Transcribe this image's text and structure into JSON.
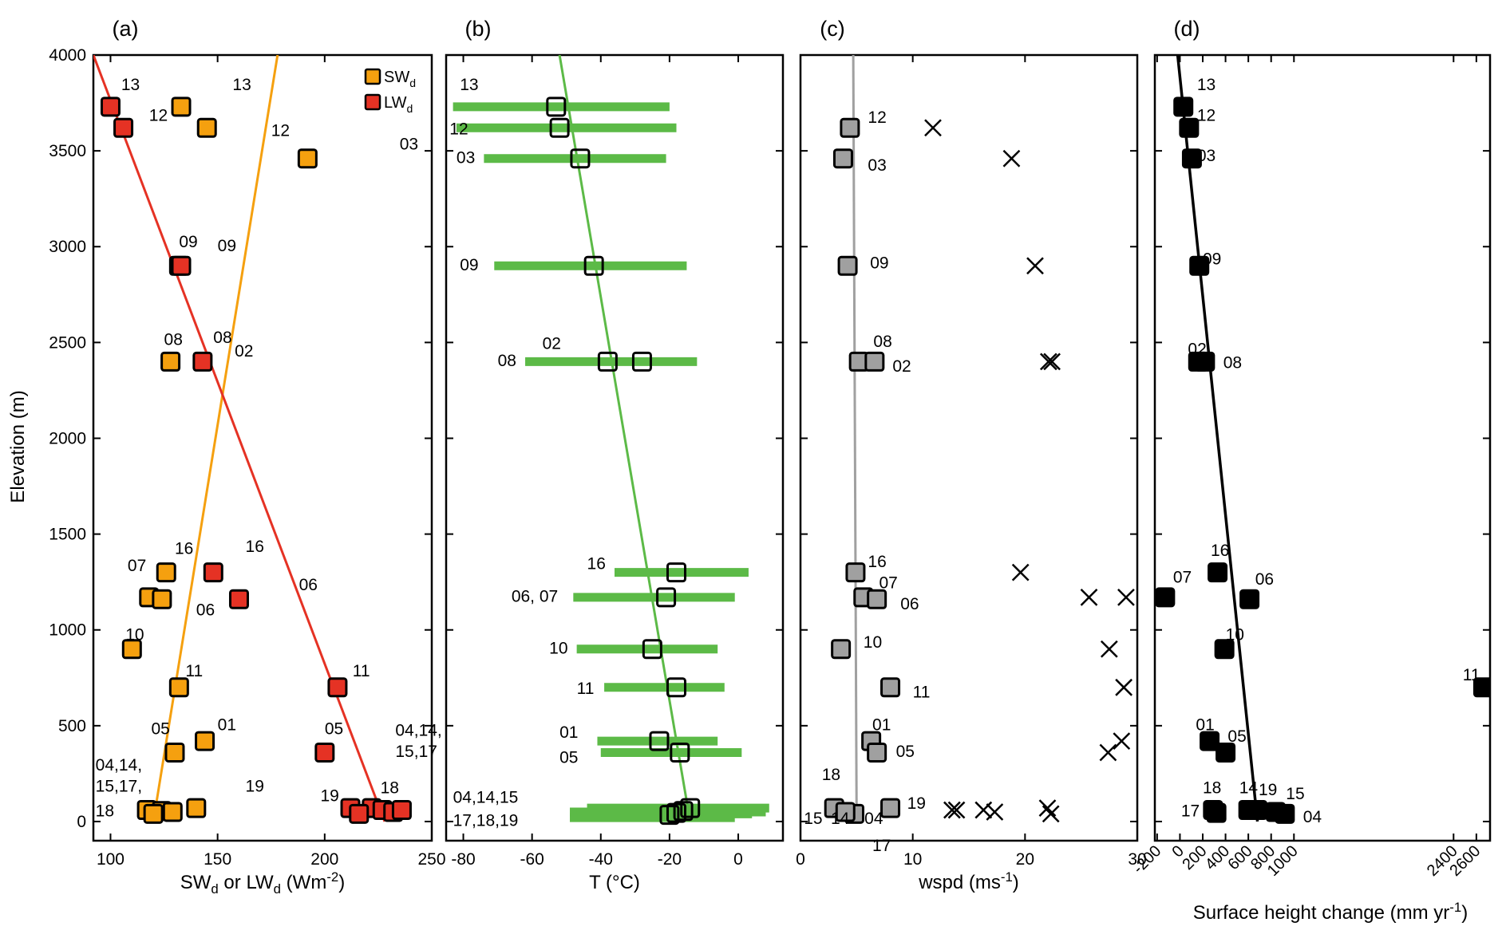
{
  "colors": {
    "sw": "#f5a00f",
    "lw": "#e53224",
    "temperature": "#5cba47",
    "wind": "#a0a0a0",
    "height": "#000000"
  },
  "y_axis": {
    "label": "Elevation (m)",
    "ticks": [
      0,
      500,
      1000,
      1500,
      2000,
      2500,
      3000,
      3500,
      4000
    ],
    "ylim": [
      -100,
      4000
    ]
  },
  "chart_data": [
    {
      "panel_label": "(a)",
      "type": "scatter",
      "xlabel": "SWd or LWd (Wm-2)",
      "xlim": [
        92,
        250
      ],
      "xticks": [
        100,
        150,
        200,
        250
      ],
      "legend": {
        "placement": "top-right",
        "entries": [
          "SWd",
          "LWd"
        ]
      },
      "series": [
        {
          "name": "SWd",
          "color_key": "sw",
          "points": [
            [
              133,
              3730
            ],
            [
              145,
              3620
            ],
            [
              192,
              3460
            ],
            [
              132,
              2900
            ],
            [
              128,
              2400
            ],
            [
              126,
              1300
            ],
            [
              118,
              1170
            ],
            [
              124,
              1160
            ],
            [
              110,
              900
            ],
            [
              132,
              700
            ],
            [
              144,
              420
            ],
            [
              130,
              360
            ],
            [
              117,
              60
            ],
            [
              124,
              55
            ],
            [
              129,
              50
            ],
            [
              120,
              40
            ],
            [
              140,
              70
            ]
          ],
          "fit": [
            [
              120,
              0
            ],
            [
              178,
              4000
            ]
          ]
        },
        {
          "name": "LWd",
          "color_key": "lw",
          "points": [
            [
              100,
              3730
            ],
            [
              106,
              3620
            ],
            [
              133,
              2900
            ],
            [
              143,
              2400
            ],
            [
              148,
              1300
            ],
            [
              160,
              1160
            ],
            [
              206,
              700
            ],
            [
              200,
              360
            ],
            [
              222,
              70
            ],
            [
              227,
              60
            ],
            [
              232,
              50
            ],
            [
              236,
              60
            ],
            [
              212,
              70
            ],
            [
              216,
              40
            ]
          ],
          "fit": [
            [
              92,
              4000
            ],
            [
              228,
              0
            ]
          ]
        }
      ],
      "annotations": [
        {
          "text": "13",
          "x": 105,
          "y": 3850
        },
        {
          "text": "12",
          "x": 118,
          "y": 3690
        },
        {
          "text": "13",
          "x": 157,
          "y": 3850
        },
        {
          "text": "12",
          "x": 175,
          "y": 3610
        },
        {
          "text": "03",
          "x": 235,
          "y": 3540
        },
        {
          "text": "09",
          "x": 132,
          "y": 3030
        },
        {
          "text": "09",
          "x": 150,
          "y": 3010
        },
        {
          "text": "08",
          "x": 125,
          "y": 2520
        },
        {
          "text": "08",
          "x": 148,
          "y": 2530
        },
        {
          "text": "02",
          "x": 158,
          "y": 2460
        },
        {
          "text": "16",
          "x": 130,
          "y": 1430
        },
        {
          "text": "16",
          "x": 163,
          "y": 1440
        },
        {
          "text": "07",
          "x": 108,
          "y": 1340
        },
        {
          "text": "06",
          "x": 188,
          "y": 1240
        },
        {
          "text": "06",
          "x": 140,
          "y": 1110
        },
        {
          "text": "10",
          "x": 107,
          "y": 980
        },
        {
          "text": "11",
          "x": 135,
          "y": 790
        },
        {
          "text": "11",
          "x": 213,
          "y": 790
        },
        {
          "text": "01",
          "x": 150,
          "y": 510
        },
        {
          "text": "05",
          "x": 119,
          "y": 490
        },
        {
          "text": "05",
          "x": 200,
          "y": 490
        },
        {
          "text": "04,14,",
          "x": 233,
          "y": 480
        },
        {
          "text": "15,17",
          "x": 233,
          "y": 370
        },
        {
          "text": "19",
          "x": 163,
          "y": 190
        },
        {
          "text": "19",
          "x": 198,
          "y": 140
        },
        {
          "text": "18",
          "x": 226,
          "y": 180
        },
        {
          "text": "04,14,",
          "x": 93,
          "y": 300
        },
        {
          "text": "15,17,",
          "x": 93,
          "y": 190
        },
        {
          "text": "18",
          "x": 93,
          "y": 60
        }
      ]
    },
    {
      "panel_label": "(b)",
      "type": "scatter",
      "xlabel": "T  (°C)",
      "xlim": [
        -85,
        13
      ],
      "xticks": [
        -80,
        -60,
        -40,
        -20,
        0
      ],
      "series": [
        {
          "name": "",
          "color_key": "temperature",
          "points": [
            [
              -53,
              3730
            ],
            [
              -52,
              3620
            ],
            [
              -46,
              3460
            ],
            [
              -42,
              2900
            ],
            [
              -38,
              2400
            ],
            [
              -28,
              2400
            ],
            [
              -18,
              1300
            ],
            [
              -21,
              1170
            ],
            [
              -25,
              900
            ],
            [
              -18,
              700
            ],
            [
              -23,
              420
            ],
            [
              -17,
              360
            ],
            [
              -14,
              70
            ],
            [
              -16,
              55
            ],
            [
              -18,
              45
            ],
            [
              -20,
              35
            ]
          ],
          "ranges": [
            [
              -83,
              -20,
              3730
            ],
            [
              -82,
              -18,
              3620
            ],
            [
              -74,
              -21,
              3460
            ],
            [
              -71,
              -15,
              2900
            ],
            [
              -62,
              -12,
              2400
            ],
            [
              -36,
              3,
              1300
            ],
            [
              -48,
              -1,
              1170
            ],
            [
              -47,
              -6,
              900
            ],
            [
              -39,
              -4,
              700
            ],
            [
              -41,
              -6,
              420
            ],
            [
              -40,
              1,
              360
            ],
            [
              -44,
              9,
              70
            ],
            [
              -49,
              8,
              50
            ],
            [
              -47,
              4,
              40
            ],
            [
              -49,
              -1,
              20
            ]
          ],
          "fit": [
            [
              -52,
              4000
            ],
            [
              -14,
              0
            ]
          ]
        }
      ],
      "annotations": [
        {
          "text": "13",
          "x": -81,
          "y": 3850
        },
        {
          "text": "12",
          "x": -84,
          "y": 3620
        },
        {
          "text": "03",
          "x": -82,
          "y": 3470
        },
        {
          "text": "09",
          "x": -81,
          "y": 2910
        },
        {
          "text": "02",
          "x": -57,
          "y": 2500
        },
        {
          "text": "08",
          "x": -70,
          "y": 2410
        },
        {
          "text": "16",
          "x": -44,
          "y": 1350
        },
        {
          "text": "06, 07",
          "x": -66,
          "y": 1180
        },
        {
          "text": "10",
          "x": -55,
          "y": 910
        },
        {
          "text": "11",
          "x": -47,
          "y": 700
        },
        {
          "text": "01",
          "x": -52,
          "y": 470
        },
        {
          "text": "05",
          "x": -52,
          "y": 340
        },
        {
          "text": "04,14,15",
          "x": -83,
          "y": 130
        },
        {
          "text": "17,18,19",
          "x": -83,
          "y": 10
        }
      ]
    },
    {
      "panel_label": "(c)",
      "type": "scatter",
      "xlabel": "wspd (ms-1)",
      "xlim": [
        0,
        30
      ],
      "xticks": [
        0,
        10,
        20,
        30
      ],
      "series": [
        {
          "name": "",
          "color_key": "wind",
          "marker": "square",
          "points": [
            [
              4.4,
              3620
            ],
            [
              3.8,
              3460
            ],
            [
              4.2,
              2900
            ],
            [
              5.2,
              2400
            ],
            [
              6.6,
              2400
            ],
            [
              4.9,
              1300
            ],
            [
              5.6,
              1170
            ],
            [
              6.8,
              1160
            ],
            [
              3.6,
              900
            ],
            [
              8.0,
              700
            ],
            [
              6.3,
              420
            ],
            [
              6.8,
              360
            ],
            [
              3.0,
              70
            ],
            [
              4.8,
              40
            ],
            [
              8.0,
              70
            ],
            [
              4.0,
              50
            ]
          ],
          "fit": [
            [
              4.7,
              4000
            ],
            [
              5.0,
              0
            ]
          ]
        },
        {
          "name": "",
          "color_key": "height",
          "marker": "cross",
          "points": [
            [
              11.8,
              3620
            ],
            [
              18.8,
              3460
            ],
            [
              20.9,
              2900
            ],
            [
              22.1,
              2400
            ],
            [
              22.4,
              2400
            ],
            [
              19.6,
              1300
            ],
            [
              25.7,
              1170
            ],
            [
              29.0,
              1170
            ],
            [
              27.5,
              900
            ],
            [
              28.8,
              700
            ],
            [
              28.6,
              420
            ],
            [
              27.4,
              360
            ],
            [
              13.5,
              60
            ],
            [
              13.9,
              60
            ],
            [
              16.3,
              60
            ],
            [
              17.3,
              50
            ],
            [
              22.0,
              70
            ],
            [
              22.3,
              40
            ]
          ]
        }
      ],
      "annotations": [
        {
          "text": "12",
          "x": 6,
          "y": 3680
        },
        {
          "text": "03",
          "x": 6,
          "y": 3430
        },
        {
          "text": "09",
          "x": 6.2,
          "y": 2920
        },
        {
          "text": "08",
          "x": 6.5,
          "y": 2510
        },
        {
          "text": "02",
          "x": 8.2,
          "y": 2380
        },
        {
          "text": "16",
          "x": 6,
          "y": 1360
        },
        {
          "text": "07",
          "x": 7,
          "y": 1250
        },
        {
          "text": "06",
          "x": 8.9,
          "y": 1140
        },
        {
          "text": "10",
          "x": 5.6,
          "y": 940
        },
        {
          "text": "11",
          "x": 10,
          "y": 680
        },
        {
          "text": "01",
          "x": 6.4,
          "y": 510
        },
        {
          "text": "05",
          "x": 8.5,
          "y": 370
        },
        {
          "text": "18",
          "x": 1.9,
          "y": 250
        },
        {
          "text": "15",
          "x": 0.3,
          "y": 20
        },
        {
          "text": "14",
          "x": 2.7,
          "y": 20
        },
        {
          "text": "04",
          "x": 5.7,
          "y": 20
        },
        {
          "text": "19",
          "x": 9.5,
          "y": 100
        },
        {
          "text": "17",
          "x": 6.4,
          "y": -120
        }
      ]
    },
    {
      "panel_label": "(d)",
      "type": "scatter",
      "xlabel": "Surface height change (mm yr-1)",
      "xlim": [
        -220,
        2720
      ],
      "xticks": [
        -200,
        0,
        200,
        400,
        600,
        800,
        1000,
        2400,
        2600
      ],
      "series": [
        {
          "name": "",
          "color_key": "height",
          "points": [
            [
              30,
              3730
            ],
            [
              80,
              3620
            ],
            [
              105,
              3460
            ],
            [
              170,
              2900
            ],
            [
              160,
              2400
            ],
            [
              220,
              2400
            ],
            [
              330,
              1300
            ],
            [
              -130,
              1170
            ],
            [
              610,
              1160
            ],
            [
              390,
              900
            ],
            [
              2660,
              700
            ],
            [
              260,
              420
            ],
            [
              400,
              360
            ],
            [
              290,
              60
            ],
            [
              320,
              45
            ],
            [
              600,
              60
            ],
            [
              680,
              60
            ],
            [
              840,
              50
            ],
            [
              920,
              40
            ]
          ],
          "fit": [
            [
              -20,
              4000
            ],
            [
              680,
              0
            ]
          ]
        }
      ],
      "annotations": [
        {
          "text": "13",
          "x": 150,
          "y": 3850
        },
        {
          "text": "12",
          "x": 150,
          "y": 3690
        },
        {
          "text": "03",
          "x": 150,
          "y": 3480
        },
        {
          "text": "09",
          "x": 200,
          "y": 2940
        },
        {
          "text": "02",
          "x": 70,
          "y": 2470
        },
        {
          "text": "08",
          "x": 380,
          "y": 2400
        },
        {
          "text": "16",
          "x": 270,
          "y": 1420
        },
        {
          "text": "06",
          "x": 660,
          "y": 1270
        },
        {
          "text": "07",
          "x": -60,
          "y": 1280
        },
        {
          "text": "10",
          "x": 400,
          "y": 980
        },
        {
          "text": "11",
          "x": 2480,
          "y": 770
        },
        {
          "text": "01",
          "x": 140,
          "y": 510
        },
        {
          "text": "05",
          "x": 420,
          "y": 450
        },
        {
          "text": "18",
          "x": 200,
          "y": 180
        },
        {
          "text": "14",
          "x": 520,
          "y": 180
        },
        {
          "text": "19",
          "x": 690,
          "y": 170
        },
        {
          "text": "15",
          "x": 930,
          "y": 150
        },
        {
          "text": "17",
          "x": 10,
          "y": 60
        },
        {
          "text": "04",
          "x": 1080,
          "y": 30
        }
      ]
    }
  ]
}
